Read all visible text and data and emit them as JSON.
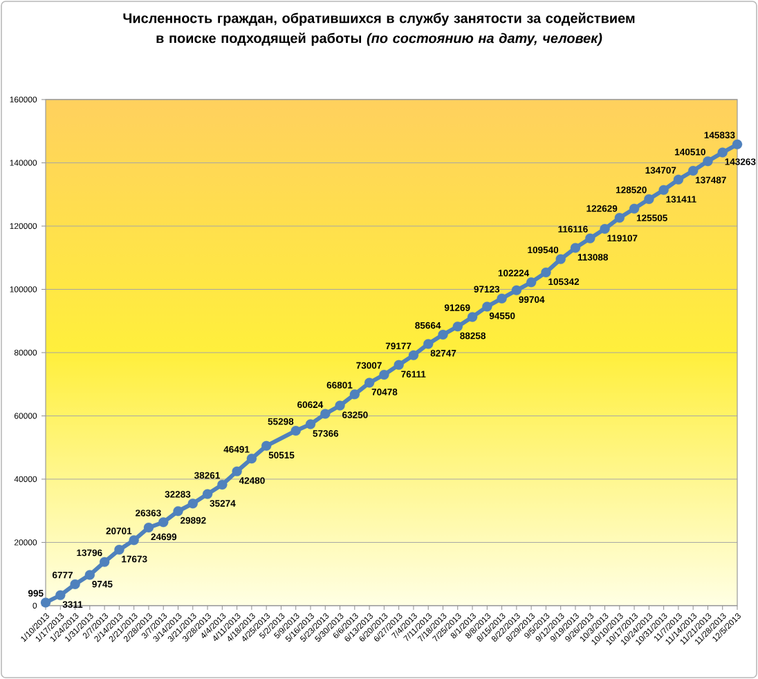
{
  "chart_data": {
    "type": "line",
    "title": "Численность граждан, обратившихся в службу занятости за содействием в поиске подходящей работы *(по состоянию на дату, человек)*",
    "series": [
      {
        "color": "#4f81bd",
        "x": [
          "2013-01-10",
          "2013-01-17",
          "2013-01-24",
          "2013-01-31",
          "2013-02-07",
          "2013-02-14",
          "2013-02-21",
          "2013-02-28",
          "2013-03-07",
          "2013-03-14",
          "2013-03-21",
          "2013-03-28",
          "2013-04-04",
          "2013-04-11",
          "2013-04-18",
          "2013-04-25",
          "2013-05-09",
          "2013-05-16",
          "2013-05-23",
          "2013-05-30",
          "2013-06-06",
          "2013-06-13",
          "2013-06-20",
          "2013-06-27",
          "2013-07-04",
          "2013-07-11",
          "2013-07-18",
          "2013-07-25",
          "2013-08-01",
          "2013-08-08",
          "2013-08-15",
          "2013-08-22",
          "2013-08-29",
          "2013-09-05",
          "2013-09-12",
          "2013-09-19",
          "2013-09-26",
          "2013-10-03",
          "2013-10-10",
          "2013-10-17",
          "2013-10-24",
          "2013-10-31",
          "2013-11-07",
          "2013-11-14",
          "2013-11-21",
          "2013-11-28",
          "2013-12-05"
        ],
        "values": [
          995,
          3311,
          6777,
          9745,
          13796,
          17673,
          20701,
          24699,
          26363,
          29892,
          32283,
          35274,
          38261,
          42480,
          46491,
          50515,
          55298,
          57366,
          60624,
          63250,
          66801,
          70478,
          73007,
          76111,
          79177,
          82747,
          85664,
          88258,
          91269,
          94550,
          97123,
          99704,
          102224,
          105342,
          109540,
          113088,
          116116,
          119107,
          122629,
          125505,
          128520,
          131411,
          134707,
          137487,
          140510,
          143263,
          145833
        ]
      }
    ],
    "xlim": [
      "2013-01-10",
      "2013-12-05"
    ],
    "xticks": [
      {
        "value": "2013-01-10",
        "label": "1/10/2013"
      },
      {
        "value": "2013-01-17",
        "label": "1/17/2013"
      },
      {
        "value": "2013-01-24",
        "label": "1/24/2013"
      },
      {
        "value": "2013-01-31",
        "label": "1/31/2013"
      },
      {
        "value": "2013-02-07",
        "label": "2/7/2013"
      },
      {
        "value": "2013-02-14",
        "label": "2/14/2013"
      },
      {
        "value": "2013-02-21",
        "label": "2/21/2013"
      },
      {
        "value": "2013-02-28",
        "label": "2/28/2013"
      },
      {
        "value": "2013-03-07",
        "label": "3/7/2013"
      },
      {
        "value": "2013-03-14",
        "label": "3/14/2013"
      },
      {
        "value": "2013-03-21",
        "label": "3/21/2013"
      },
      {
        "value": "2013-03-28",
        "label": "3/28/2013"
      },
      {
        "value": "2013-04-04",
        "label": "4/4/2013"
      },
      {
        "value": "2013-04-11",
        "label": "4/11/2013"
      },
      {
        "value": "2013-04-18",
        "label": "4/18/2013"
      },
      {
        "value": "2013-04-25",
        "label": "4/25/2013"
      },
      {
        "value": "2013-05-02",
        "label": "5/2/2013"
      },
      {
        "value": "2013-05-09",
        "label": "5/9/2013"
      },
      {
        "value": "2013-05-16",
        "label": "5/16/2013"
      },
      {
        "value": "2013-05-23",
        "label": "5/23/2013"
      },
      {
        "value": "2013-05-30",
        "label": "5/30/2013"
      },
      {
        "value": "2013-06-06",
        "label": "6/6/2013"
      },
      {
        "value": "2013-06-13",
        "label": "6/13/2013"
      },
      {
        "value": "2013-06-20",
        "label": "6/20/2013"
      },
      {
        "value": "2013-06-27",
        "label": "6/27/2013"
      },
      {
        "value": "2013-07-04",
        "label": "7/4/2013"
      },
      {
        "value": "2013-07-11",
        "label": "7/11/2013"
      },
      {
        "value": "2013-07-18",
        "label": "7/18/2013"
      },
      {
        "value": "2013-07-25",
        "label": "7/25/2013"
      },
      {
        "value": "2013-08-01",
        "label": "8/1/2013"
      },
      {
        "value": "2013-08-08",
        "label": "8/8/2013"
      },
      {
        "value": "2013-08-15",
        "label": "8/15/2013"
      },
      {
        "value": "2013-08-22",
        "label": "8/22/2013"
      },
      {
        "value": "2013-08-29",
        "label": "8/29/2013"
      },
      {
        "value": "2013-09-05",
        "label": "9/5/2013"
      },
      {
        "value": "2013-09-12",
        "label": "9/12/2013"
      },
      {
        "value": "2013-09-19",
        "label": "9/19/2013"
      },
      {
        "value": "2013-09-26",
        "label": "9/26/2013"
      },
      {
        "value": "2013-10-03",
        "label": "10/3/2013"
      },
      {
        "value": "2013-10-10",
        "label": "10/10/2013"
      },
      {
        "value": "2013-10-17",
        "label": "10/17/2013"
      },
      {
        "value": "2013-10-24",
        "label": "10/24/2013"
      },
      {
        "value": "2013-10-31",
        "label": "10/31/2013"
      },
      {
        "value": "2013-11-07",
        "label": "11/7/2013"
      },
      {
        "value": "2013-11-14",
        "label": "11/14/2013"
      },
      {
        "value": "2013-11-21",
        "label": "11/21/2013"
      },
      {
        "value": "2013-11-28",
        "label": "11/28/2013"
      },
      {
        "value": "2013-12-05",
        "label": "12/5/2013"
      }
    ],
    "ylim": [
      0,
      160000
    ],
    "yticks": [
      0,
      20000,
      40000,
      60000,
      80000,
      100000,
      120000,
      140000,
      160000
    ],
    "grid": "y",
    "marker": "circle",
    "line_style": "solid",
    "data_labels": true
  }
}
